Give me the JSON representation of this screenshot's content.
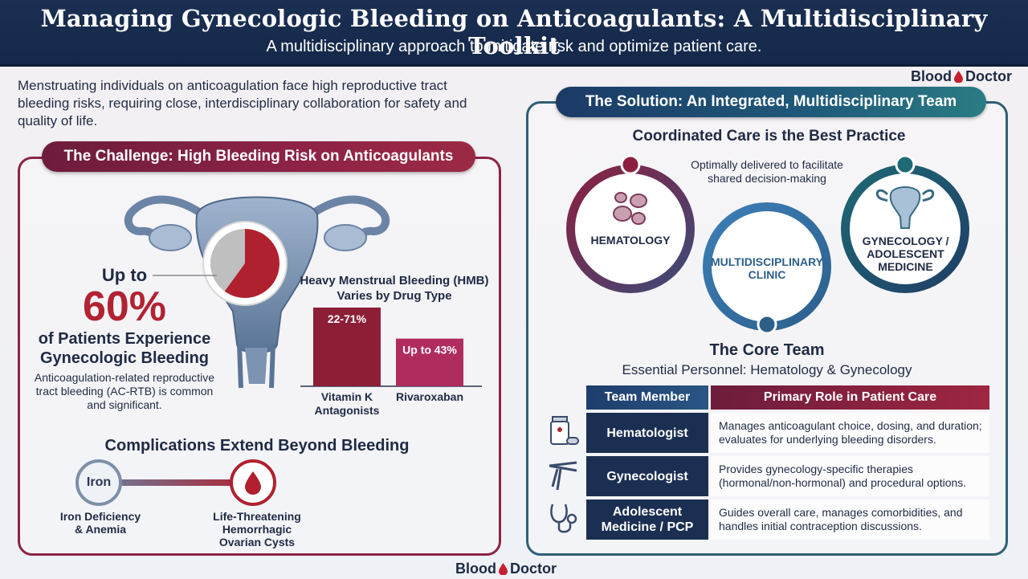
{
  "header": {
    "title": "Managing Gynecologic Bleeding on Anticoagulants: A Multidisciplinary Toolkit",
    "subtitle": "A multidisciplinary approach to mitigate risk and optimize patient care."
  },
  "brand": {
    "name_part1": "Blood",
    "name_part2": "Doctor"
  },
  "intro": "Menstruating individuals on anticoagulation face high reproductive tract bleeding risks, requiring close, interdisciplinary collaboration for safety and quality of life.",
  "challenge": {
    "heading": "The Challenge: High Bleeding Risk on Anticoagulants",
    "up_to": "Up to",
    "stat_value": "60%",
    "stat_fraction": 0.6,
    "stat_label": "of Patients Experience Gynecologic Bleeding",
    "stat_description": "Anticoagulation-related reproductive tract bleeding (AC-RTB) is common and significant.",
    "hmb_title": "Heavy Menstrual Bleeding (HMB) Varies by Drug Type",
    "complications_title": "Complications Extend Beyond Bleeding",
    "complications": [
      {
        "icon_text": "Iron",
        "label": "Iron Deficiency & Anemia"
      },
      {
        "icon": "blood-drop-icon",
        "label": "Life-Threatening Hemorrhagic Ovarian Cysts"
      }
    ]
  },
  "chart_data": {
    "type": "bar",
    "title": "Heavy Menstrual Bleeding (HMB) Varies by Drug Type",
    "categories": [
      "Vitamin K Antagonists",
      "Rivaroxaban"
    ],
    "values": [
      71,
      43
    ],
    "ranges": [
      [
        22,
        71
      ],
      [
        null,
        43
      ]
    ],
    "data_labels": [
      "22-71%",
      "Up to 43%"
    ],
    "colors": [
      "#8c1f36",
      "#b02c5f"
    ],
    "ylim": [
      0,
      71
    ]
  },
  "solution": {
    "heading": "The Solution: An Integrated, Multidisciplinary Team",
    "coord_title": "Coordinated Care is the Best Practice",
    "coord_subtitle": "Optimally delivered to facilitate shared decision-making",
    "circles": {
      "hematology": "HEMATOLOGY",
      "clinic": "MULTIDISCIPLINARY CLINIC",
      "gynecology": "GYNECOLOGY / ADOLESCENT MEDICINE"
    },
    "core_title": "The Core Team",
    "core_subtitle": "Essential Personnel: Hematology & Gynecology",
    "table": {
      "headers": [
        "Team Member",
        "Primary Role in Patient Care"
      ],
      "rows": [
        {
          "member": "Hematologist",
          "role": "Manages anticoagulant choice, dosing, and duration; evaluates for underlying bleeding disorders.",
          "icon": "medicine-bottle-icon"
        },
        {
          "member": "Gynecologist",
          "role": "Provides gynecology-specific therapies (hormonal/non-hormonal) and procedural options.",
          "icon": "speculum-icon"
        },
        {
          "member": "Adolescent Medicine / PCP",
          "role": "Guides overall care, manages comorbidities, and handles initial contraception discussions.",
          "icon": "stethoscope-icon"
        }
      ]
    }
  }
}
